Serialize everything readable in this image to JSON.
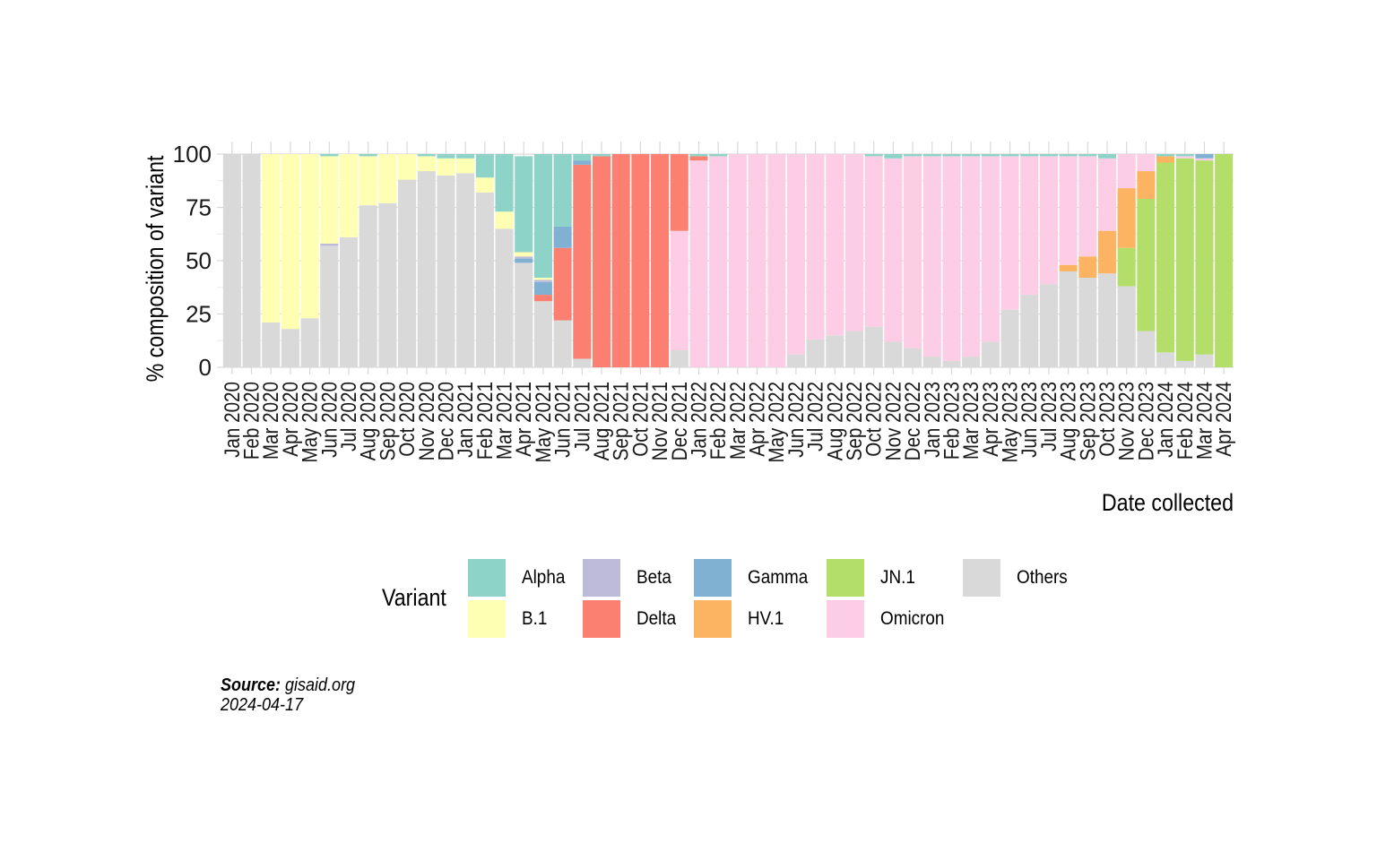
{
  "chart_data": {
    "type": "bar",
    "stacked": true,
    "ylabel": "% composition of variant",
    "xlabel": "Date collected",
    "ylim": [
      0,
      100
    ],
    "yticks": [
      0,
      25,
      50,
      75,
      100
    ],
    "categories": [
      "Jan 2020",
      "Feb 2020",
      "Mar 2020",
      "Apr 2020",
      "May 2020",
      "Jun 2020",
      "Jul 2020",
      "Aug 2020",
      "Sep 2020",
      "Oct 2020",
      "Nov 2020",
      "Dec 2020",
      "Jan 2021",
      "Feb 2021",
      "Mar 2021",
      "Apr 2021",
      "May 2021",
      "Jun 2021",
      "Jul 2021",
      "Aug 2021",
      "Sep 2021",
      "Oct 2021",
      "Nov 2021",
      "Dec 2021",
      "Jan 2022",
      "Feb 2022",
      "Mar 2022",
      "Apr 2022",
      "May 2022",
      "Jun 2022",
      "Jul 2022",
      "Aug 2022",
      "Sep 2022",
      "Oct 2022",
      "Nov 2022",
      "Dec 2022",
      "Jan 2023",
      "Feb 2023",
      "Mar 2023",
      "Apr 2023",
      "May 2023",
      "Jun 2023",
      "Jul 2023",
      "Aug 2023",
      "Sep 2023",
      "Oct 2023",
      "Nov 2023",
      "Dec 2023",
      "Jan 2024",
      "Feb 2024",
      "Mar 2024",
      "Apr 2024"
    ],
    "stack_order_bottom_to_top": [
      "Others",
      "JN.1",
      "HV.1",
      "Omicron",
      "Delta",
      "Gamma",
      "Beta",
      "B.1",
      "Alpha"
    ],
    "series": [
      {
        "name": "Others",
        "color": "#d9d9d9",
        "values": [
          100,
          100,
          21,
          18,
          23,
          57,
          61,
          76,
          77,
          88,
          92,
          90,
          91,
          82,
          65,
          49,
          31,
          22,
          4,
          0,
          0,
          0,
          0,
          8,
          0,
          0,
          0,
          0,
          0,
          6,
          13,
          15,
          17,
          19,
          12,
          9,
          5,
          3,
          5,
          12,
          27,
          34,
          39,
          45,
          42,
          44,
          38,
          17,
          7,
          3,
          6,
          0
        ]
      },
      {
        "name": "JN.1",
        "color": "#b3de69",
        "values": [
          0,
          0,
          0,
          0,
          0,
          0,
          0,
          0,
          0,
          0,
          0,
          0,
          0,
          0,
          0,
          0,
          0,
          0,
          0,
          0,
          0,
          0,
          0,
          0,
          0,
          0,
          0,
          0,
          0,
          0,
          0,
          0,
          0,
          0,
          0,
          0,
          0,
          0,
          0,
          0,
          0,
          0,
          0,
          0,
          0,
          0,
          18,
          62,
          89,
          95,
          91,
          100
        ]
      },
      {
        "name": "HV.1",
        "color": "#fdb462",
        "values": [
          0,
          0,
          0,
          0,
          0,
          0,
          0,
          0,
          0,
          0,
          0,
          0,
          0,
          0,
          0,
          0,
          0,
          0,
          0,
          0,
          0,
          0,
          0,
          0,
          0,
          0,
          0,
          0,
          0,
          0,
          0,
          0,
          0,
          0,
          0,
          0,
          0,
          0,
          0,
          0,
          0,
          0,
          0,
          3,
          10,
          20,
          28,
          13,
          3,
          0,
          0,
          0
        ]
      },
      {
        "name": "Omicron",
        "color": "#fccde5",
        "values": [
          0,
          0,
          0,
          0,
          0,
          0,
          0,
          0,
          0,
          0,
          0,
          0,
          0,
          0,
          0,
          0,
          0,
          0,
          0,
          0,
          0,
          0,
          0,
          56,
          97,
          99,
          100,
          100,
          100,
          94,
          87,
          85,
          83,
          80,
          86,
          90,
          94,
          96,
          94,
          87,
          72,
          65,
          60,
          51,
          47,
          34,
          16,
          8,
          0,
          1,
          1,
          0
        ]
      },
      {
        "name": "Delta",
        "color": "#fb8072",
        "values": [
          0,
          0,
          0,
          0,
          0,
          0,
          0,
          0,
          0,
          0,
          0,
          0,
          0,
          0,
          0,
          0,
          3,
          34,
          91,
          99,
          100,
          100,
          100,
          36,
          2,
          0,
          0,
          0,
          0,
          0,
          0,
          0,
          0,
          0,
          0,
          0,
          0,
          0,
          0,
          0,
          0,
          0,
          0,
          0,
          0,
          0,
          0,
          0,
          0,
          0,
          0,
          0
        ]
      },
      {
        "name": "Gamma",
        "color": "#80b1d3",
        "values": [
          0,
          0,
          0,
          0,
          0,
          0,
          0,
          0,
          0,
          0,
          0,
          0,
          0,
          0,
          0,
          2,
          6,
          10,
          2,
          0,
          0,
          0,
          0,
          0,
          0,
          0,
          0,
          0,
          0,
          0,
          0,
          0,
          0,
          0,
          0,
          0,
          0,
          0,
          0,
          0,
          0,
          0,
          0,
          0,
          0,
          0,
          0,
          0,
          0,
          0,
          2,
          0
        ]
      },
      {
        "name": "Beta",
        "color": "#bebada",
        "values": [
          0,
          0,
          0,
          0,
          0,
          1,
          0,
          0,
          0,
          0,
          0,
          0,
          0,
          0,
          0,
          1,
          1,
          0,
          0,
          0,
          0,
          0,
          0,
          0,
          0,
          0,
          0,
          0,
          0,
          0,
          0,
          0,
          0,
          0,
          0,
          0,
          0,
          0,
          0,
          0,
          0,
          0,
          0,
          0,
          0,
          0,
          0,
          0,
          0,
          0,
          0,
          0
        ]
      },
      {
        "name": "B.1",
        "color": "#ffffb3",
        "values": [
          0,
          0,
          79,
          82,
          77,
          41,
          39,
          23,
          23,
          12,
          7,
          8,
          7,
          7,
          8,
          2,
          1,
          0,
          0,
          0,
          0,
          0,
          0,
          0,
          0,
          0,
          0,
          0,
          0,
          0,
          0,
          0,
          0,
          0,
          0,
          0,
          0,
          0,
          0,
          0,
          0,
          0,
          0,
          0,
          0,
          0,
          0,
          0,
          0,
          0,
          0,
          0
        ]
      },
      {
        "name": "Alpha",
        "color": "#8dd3c7",
        "values": [
          0,
          0,
          0,
          0,
          0,
          1,
          0,
          1,
          0,
          0,
          1,
          2,
          2,
          11,
          27,
          45,
          58,
          34,
          3,
          1,
          0,
          0,
          0,
          0,
          1,
          1,
          0,
          0,
          0,
          0,
          0,
          0,
          0,
          1,
          2,
          1,
          1,
          1,
          1,
          1,
          1,
          1,
          1,
          1,
          1,
          2,
          0,
          0,
          1,
          1,
          0,
          0
        ]
      }
    ]
  },
  "legend": {
    "title": "Variant",
    "items": [
      {
        "label": "Alpha",
        "color": "#8dd3c7"
      },
      {
        "label": "B.1",
        "color": "#ffffb3"
      },
      {
        "label": "Beta",
        "color": "#bebada"
      },
      {
        "label": "Delta",
        "color": "#fb8072"
      },
      {
        "label": "Gamma",
        "color": "#80b1d3"
      },
      {
        "label": "HV.1",
        "color": "#fdb462"
      },
      {
        "label": "JN.1",
        "color": "#b3de69"
      },
      {
        "label": "Omicron",
        "color": "#fccde5"
      },
      {
        "label": "Others",
        "color": "#d9d9d9"
      }
    ]
  },
  "caption": {
    "source_label": "Source:",
    "source_value": " gisaid.org",
    "date": "2024-04-17"
  }
}
